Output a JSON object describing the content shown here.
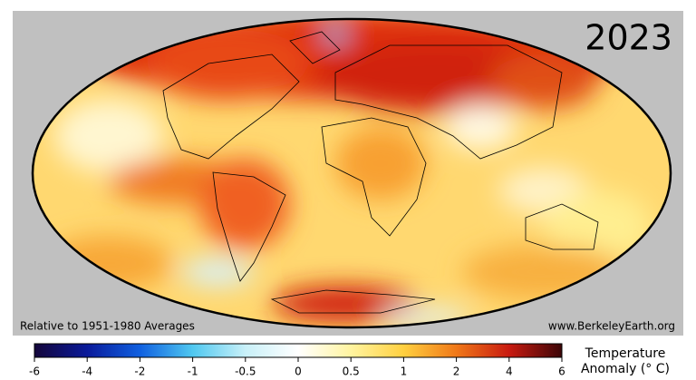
{
  "year": "2023",
  "baseline_note": "Relative to 1951-1980 Averages",
  "source": "www.BerkeleyEarth.org",
  "colorbar": {
    "label": [
      "Temperature",
      "Anomaly (° C)"
    ],
    "ticks": [
      -6,
      -4,
      -2,
      -1,
      -0.5,
      0,
      0.5,
      1,
      2,
      4,
      6
    ]
  }
}
